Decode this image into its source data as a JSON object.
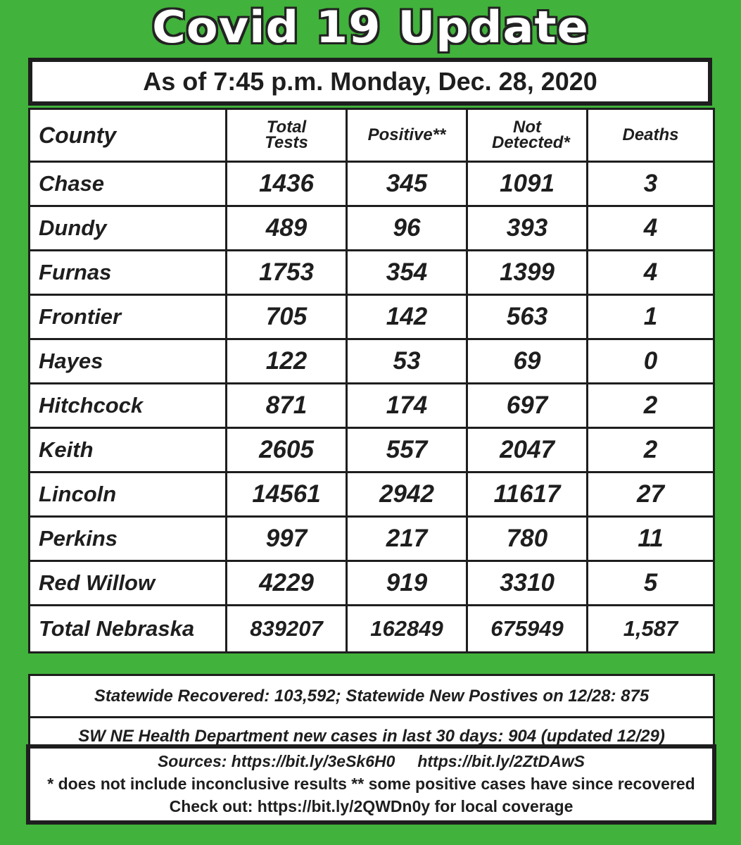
{
  "title": "Covid 19 Update",
  "as_of": "As of 7:45 p.m. Monday, Dec. 28, 2020",
  "table": {
    "headers": [
      "County",
      "Total Tests",
      "Positive**",
      "Not Detected*",
      "Deaths"
    ],
    "rows": [
      [
        "Chase",
        "1436",
        "345",
        "1091",
        "3"
      ],
      [
        "Dundy",
        "489",
        "96",
        "393",
        "4"
      ],
      [
        "Furnas",
        "1753",
        "354",
        "1399",
        "4"
      ],
      [
        "Frontier",
        "705",
        "142",
        "563",
        "1"
      ],
      [
        "Hayes",
        "122",
        "53",
        "69",
        "0"
      ],
      [
        "Hitchcock",
        "871",
        "174",
        "697",
        "2"
      ],
      [
        "Keith",
        "2605",
        "557",
        "2047",
        "2"
      ],
      [
        "Lincoln",
        "14561",
        "2942",
        "11617",
        "27"
      ],
      [
        "Perkins",
        "997",
        "217",
        "780",
        "11"
      ],
      [
        "Red Willow",
        "4229",
        "919",
        "3310",
        "5"
      ],
      [
        "Total Nebraska",
        "839207",
        "162849",
        "675949",
        "1,587"
      ]
    ]
  },
  "statewide_note": "Statewide Recovered: 103,592; Statewide New Postives on 12/28: 875",
  "health_dept_note": "SW NE Health Department new cases in last 30 days: 904 (updated 12/29)",
  "sources": {
    "line1": "Sources: https://bit.ly/3eSk6H0     https://bit.ly/2ZtDAwS",
    "line2": "* does not include inconclusive results  ** some positive cases have since recovered",
    "line3": "Check out: https://bit.ly/2QWDn0y  for local coverage"
  },
  "colors": {
    "background": "#41b23b",
    "border": "#1e1e1e"
  }
}
